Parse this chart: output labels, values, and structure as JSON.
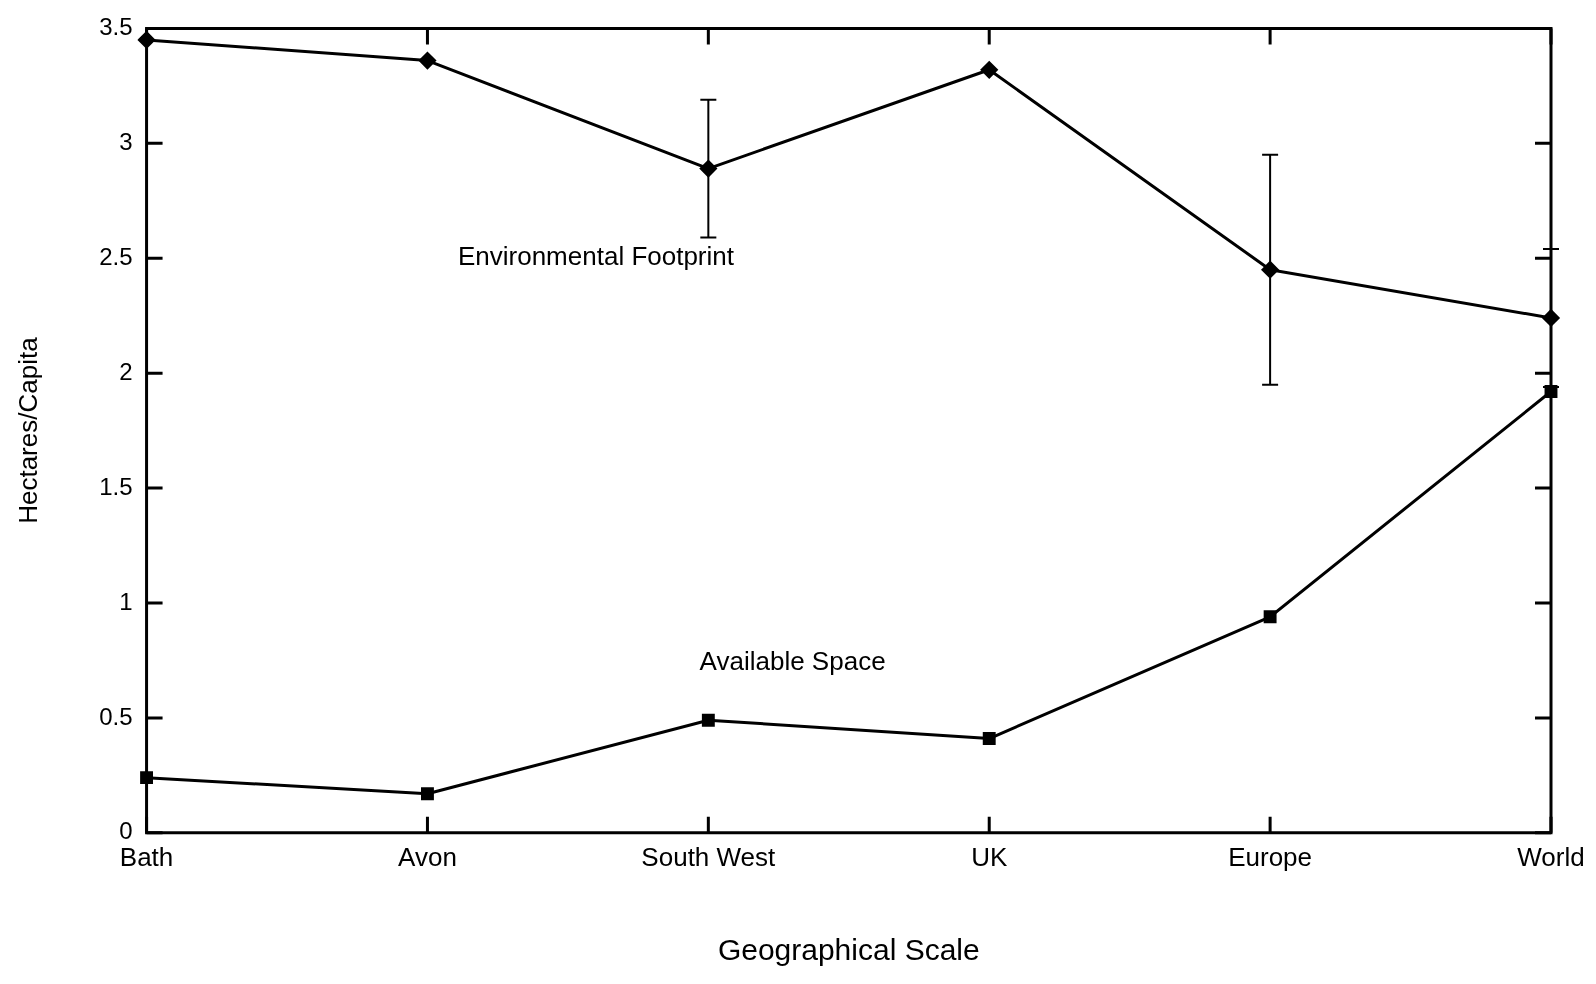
{
  "chart_data": {
    "type": "line",
    "xlabel": "Geographical Scale",
    "ylabel": "Hectares/Capita",
    "categories": [
      "Bath",
      "Avon",
      "South West",
      "UK",
      "Europe",
      "World"
    ],
    "ylim": [
      0,
      3.5
    ],
    "yticks": [
      0,
      0.5,
      1,
      1.5,
      2,
      2.5,
      3,
      3.5
    ],
    "grid": false,
    "legend": false,
    "series": [
      {
        "name": "Environmental Footprint",
        "color": "#000000",
        "marker": "diamond",
        "values": [
          3.45,
          3.36,
          2.89,
          3.32,
          2.45,
          2.24
        ],
        "errors": [
          null,
          null,
          0.3,
          null,
          0.5,
          0.3
        ]
      },
      {
        "name": "Available Space",
        "color": "#000000",
        "marker": "square",
        "values": [
          0.24,
          0.17,
          0.49,
          0.41,
          0.94,
          1.92
        ]
      }
    ]
  }
}
